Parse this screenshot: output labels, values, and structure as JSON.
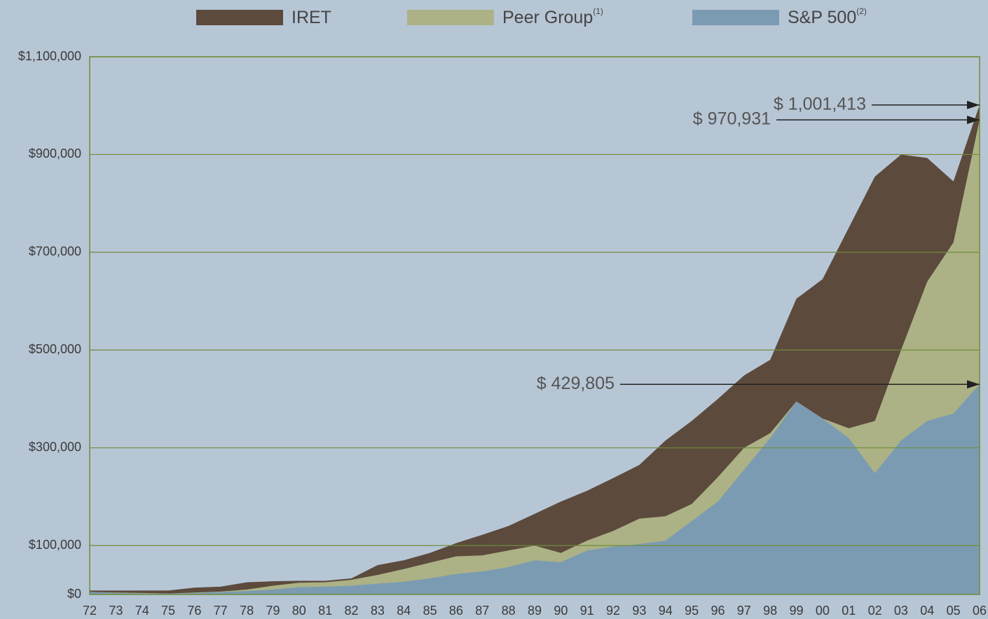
{
  "chart_data": {
    "type": "area",
    "categories": [
      "72",
      "73",
      "74",
      "75",
      "76",
      "77",
      "78",
      "79",
      "80",
      "81",
      "82",
      "83",
      "84",
      "85",
      "86",
      "87",
      "88",
      "89",
      "90",
      "91",
      "92",
      "93",
      "94",
      "95",
      "96",
      "97",
      "98",
      "99",
      "00",
      "01",
      "02",
      "03",
      "04",
      "05",
      "06"
    ],
    "series": [
      {
        "name": "IRET",
        "color": "#5c4a3d",
        "values": [
          8000,
          8000,
          8000,
          8000,
          14000,
          16000,
          25000,
          27000,
          28000,
          28000,
          33000,
          60000,
          70000,
          85000,
          105000,
          122000,
          140000,
          165000,
          190000,
          212000,
          238000,
          265000,
          315000,
          355000,
          400000,
          448000,
          480000,
          605000,
          645000,
          750000,
          855000,
          900000,
          893000,
          845000,
          1001413
        ]
      },
      {
        "name": "Peer Group",
        "name_note": "(1)",
        "color": "#acb285",
        "values": [
          5000,
          4000,
          3000,
          2000,
          4000,
          6000,
          10000,
          18000,
          24000,
          25000,
          30000,
          40000,
          52000,
          65000,
          78000,
          80000,
          90000,
          100000,
          85000,
          110000,
          130000,
          155000,
          160000,
          185000,
          240000,
          300000,
          330000,
          395000,
          360000,
          340000,
          355000,
          500000,
          640000,
          720000,
          970931
        ]
      },
      {
        "name": "S&P 500",
        "name_note": "(2)",
        "color": "#7b9bb3",
        "values": [
          5000,
          3000,
          2000,
          2000,
          3000,
          5000,
          7000,
          10000,
          15000,
          16000,
          18000,
          22000,
          26000,
          33000,
          42000,
          47000,
          56000,
          70000,
          66000,
          90000,
          98000,
          103000,
          110000,
          150000,
          190000,
          255000,
          320000,
          395000,
          360000,
          320000,
          248000,
          315000,
          355000,
          370000,
          429805
        ]
      }
    ],
    "annotations": [
      "$ 1,001,413",
      "$ 970,931",
      "$ 429,805"
    ],
    "ylim": [
      0,
      1100000
    ],
    "yticks": [
      {
        "value": 0,
        "label": "$0"
      },
      {
        "value": 100000,
        "label": "$100,000"
      },
      {
        "value": 300000,
        "label": "$300,000"
      },
      {
        "value": 500000,
        "label": "$500,000"
      },
      {
        "value": 700000,
        "label": "$700,000"
      },
      {
        "value": 900000,
        "label": "$900,000"
      },
      {
        "value": 1100000,
        "label": "$1,100,000"
      }
    ],
    "grid": true
  }
}
